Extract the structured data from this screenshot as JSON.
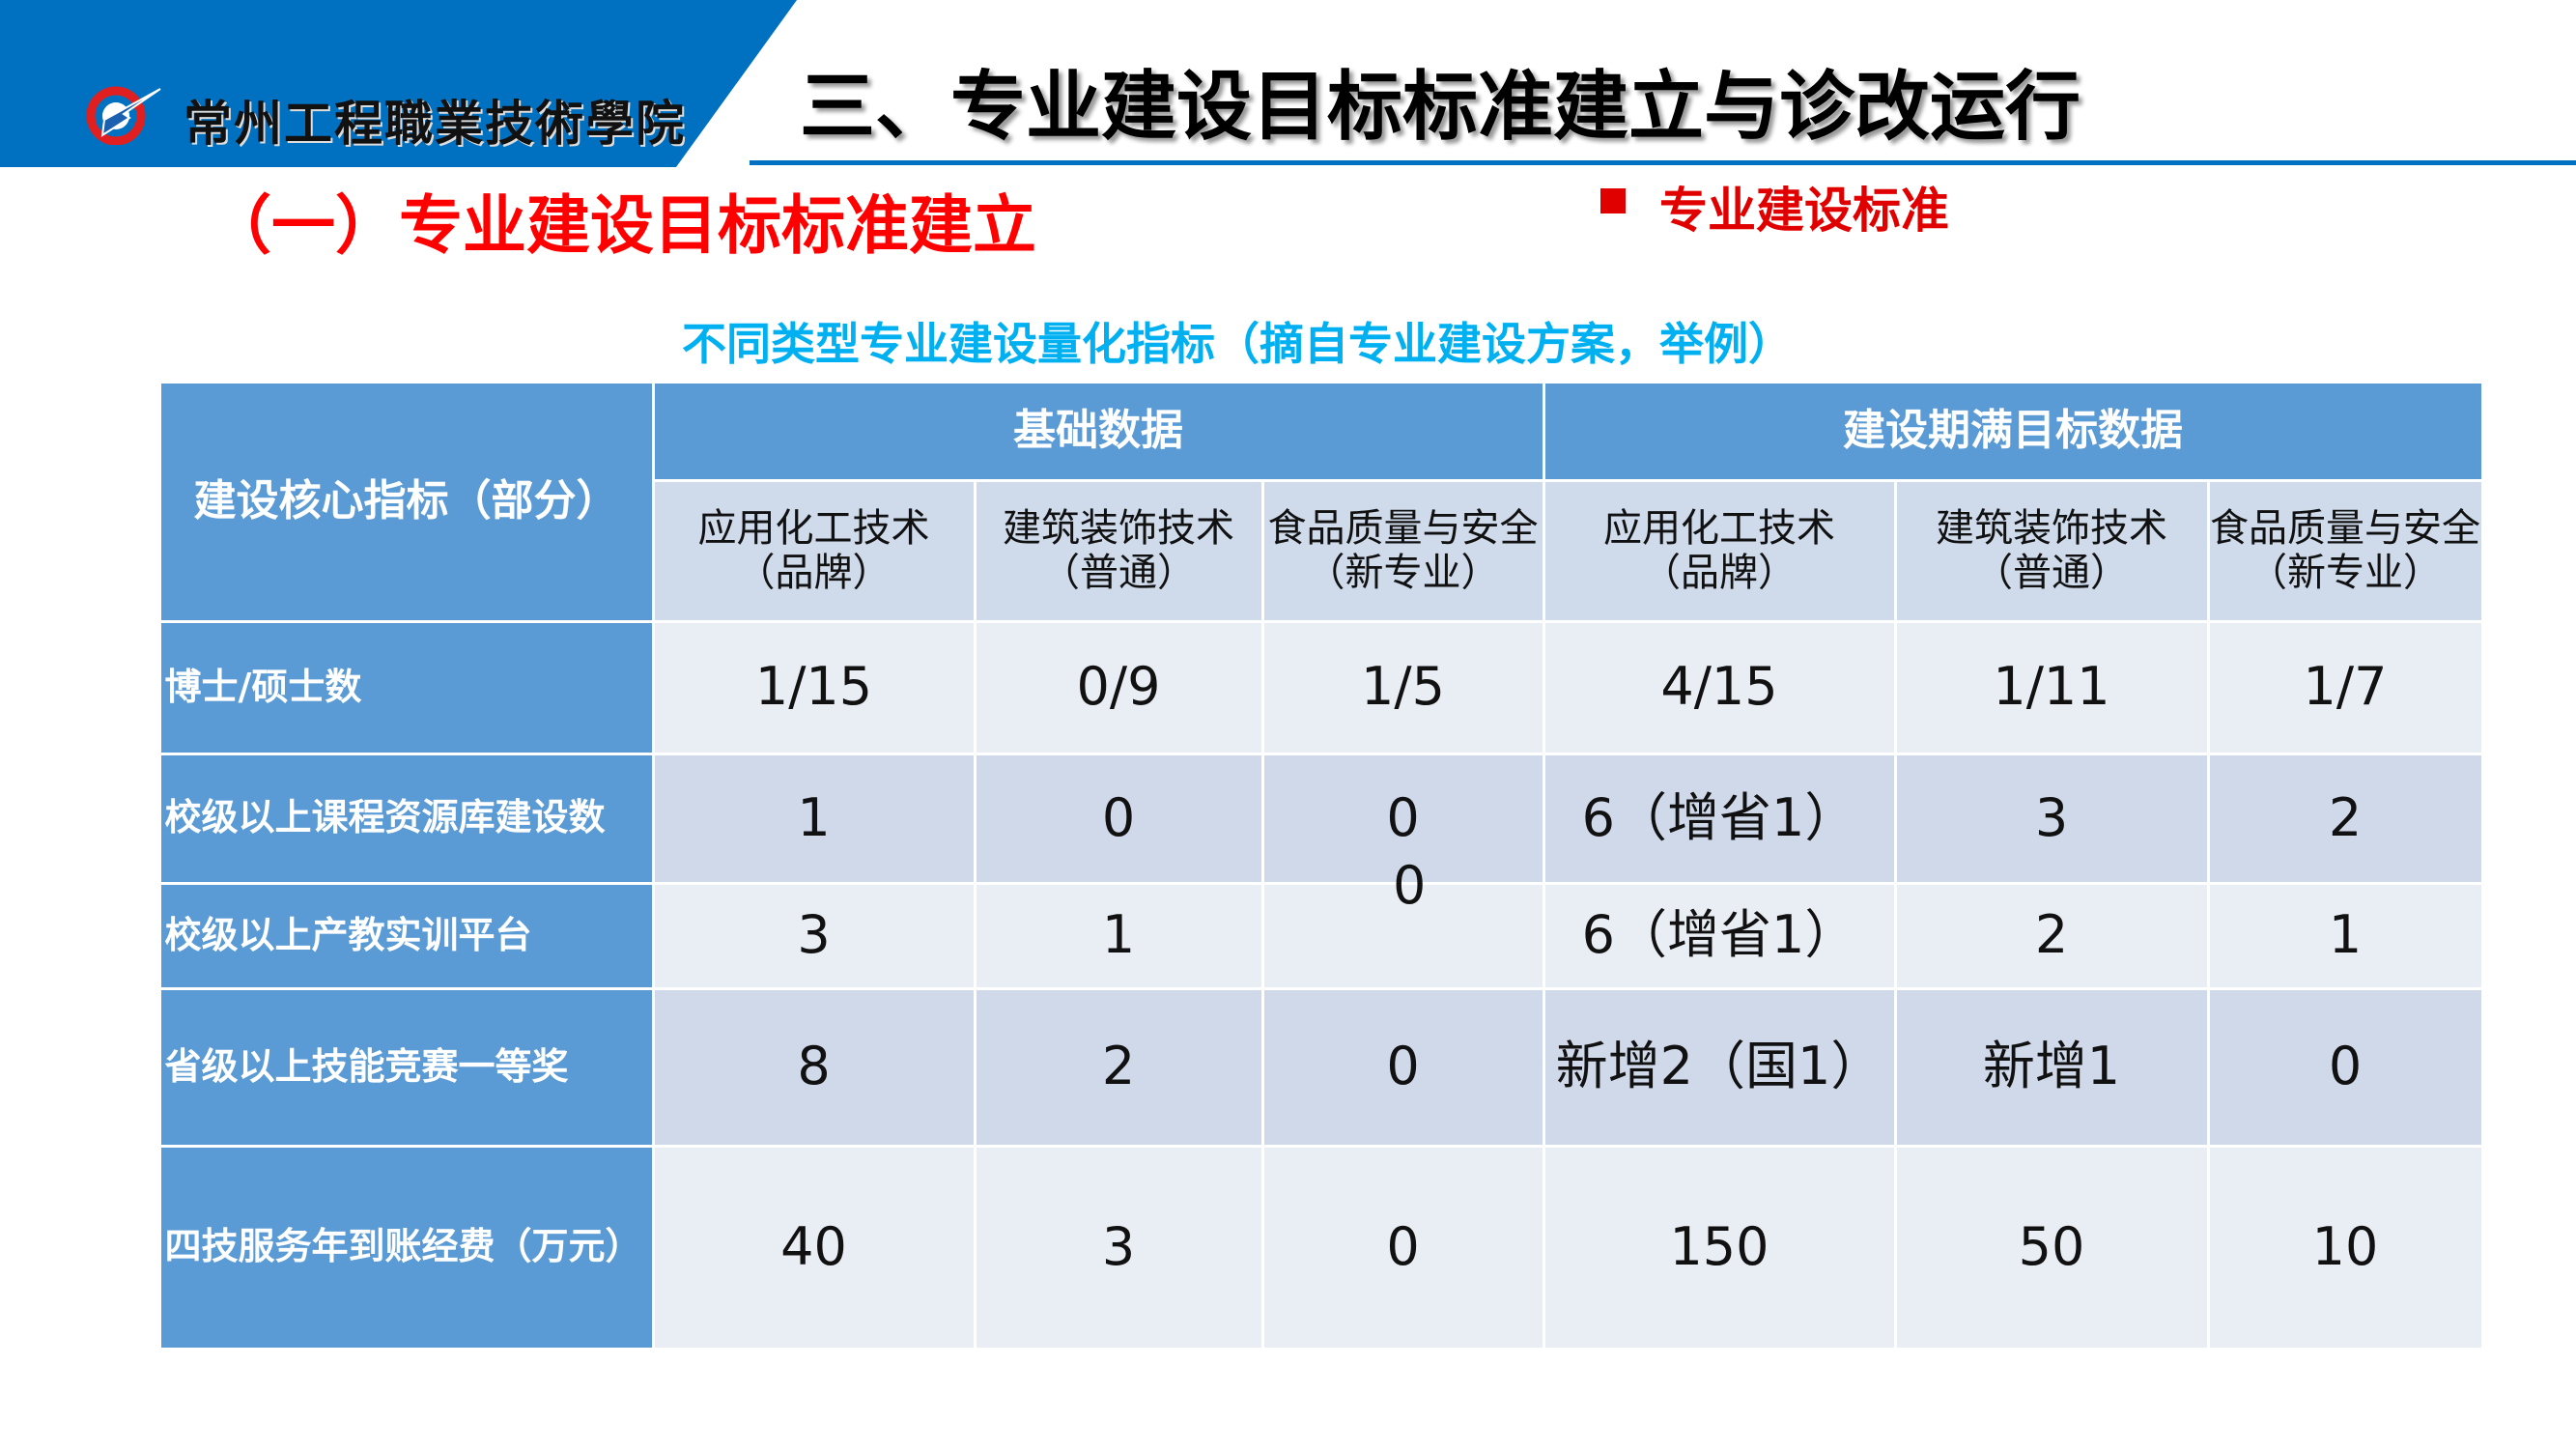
{
  "header": {
    "school_name": "常州工程職業技術學院",
    "title": "三、专业建设目标标准建立与诊改运行",
    "subtitle": "（一）专业建设目标标准建立",
    "bullet": "专业建设标准",
    "colors": {
      "banner": "#0070c0",
      "subtitle": "#ff0000",
      "caption": "#00b0f0",
      "table_header": "#5b9bd5"
    }
  },
  "table": {
    "caption": "不同类型专业建设量化指标（摘自专业建设方案，举例）",
    "corner": "建设核心指标（部分）",
    "groups": [
      "基础数据",
      "建设期满目标数据"
    ],
    "columns": [
      [
        "应用化工技术",
        "（品牌）"
      ],
      [
        "建筑装饰技术",
        "（普通）"
      ],
      [
        "食品质量与安全",
        "（新专业）"
      ],
      [
        "应用化工技术",
        "（品牌）"
      ],
      [
        "建筑装饰技术",
        "（普通）"
      ],
      [
        "食品质量与安全",
        "（新专业）"
      ]
    ],
    "rows": [
      {
        "label": "博士/硕士数",
        "values": [
          "1/15",
          "0/9",
          "1/5",
          "4/15",
          "1/11",
          "1/7"
        ]
      },
      {
        "label": "校级以上课程资源库建设数",
        "values": [
          "1",
          "0",
          "0",
          "6（增省1）",
          "3",
          "2"
        ]
      },
      {
        "label": "校级以上产教实训平台",
        "values": [
          "3",
          "1",
          "",
          "6（增省1）",
          "2",
          "1"
        ]
      },
      {
        "label": "省级以上技能竞赛一等奖",
        "values": [
          "8",
          "2",
          "0",
          "新增2（国1）",
          "新增1",
          "0"
        ]
      },
      {
        "label": "四技服务年到账经费（万元）",
        "values": [
          "40",
          "3",
          "0",
          "150",
          "50",
          "10"
        ]
      }
    ],
    "stray_value": "0"
  }
}
